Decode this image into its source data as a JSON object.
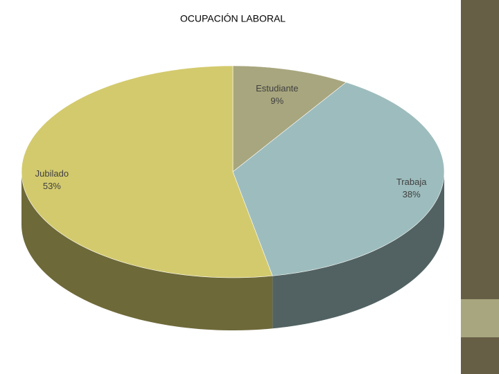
{
  "chart_data": {
    "type": "pie3d",
    "title": "OCUPACIÓN LABORAL",
    "categories": [
      "Estudiante",
      "Trabaja",
      "Jubilado"
    ],
    "values": [
      9,
      38,
      53
    ],
    "value_labels": [
      "9%",
      "38%",
      "53%"
    ],
    "colors": [
      "#a8a67e",
      "#9dbcbd",
      "#d3ca6e"
    ]
  }
}
